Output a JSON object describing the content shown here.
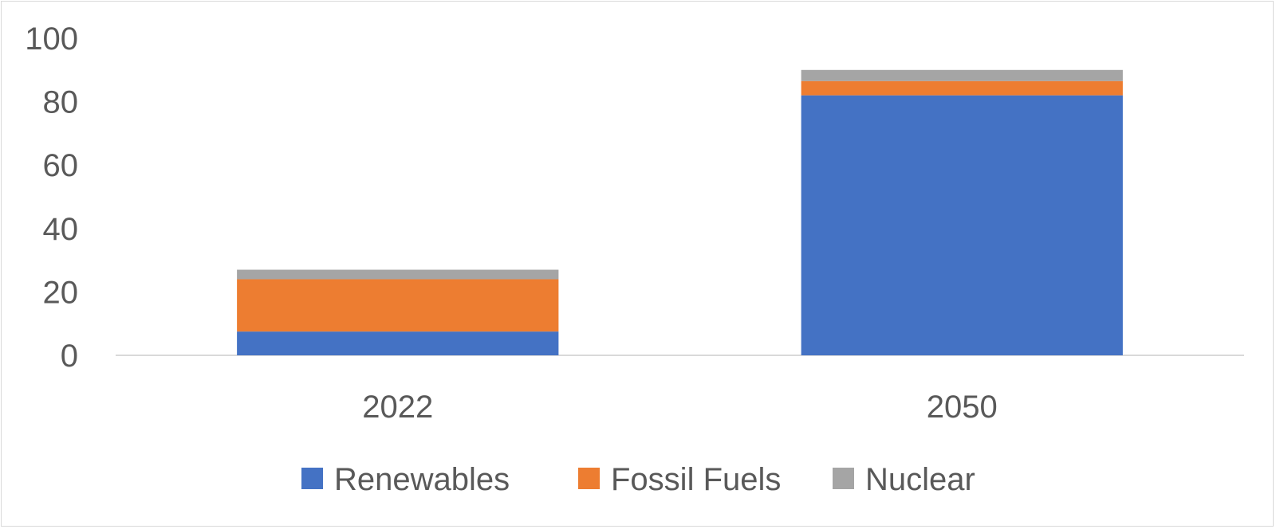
{
  "chart_data": {
    "type": "bar",
    "stacked": true,
    "categories": [
      "2022",
      "2050"
    ],
    "series": [
      {
        "name": "Renewables",
        "values": [
          7.5,
          82
        ],
        "color": "#4472c4"
      },
      {
        "name": "Fossil Fuels",
        "values": [
          16.5,
          4.5
        ],
        "color": "#ed7d31"
      },
      {
        "name": "Nuclear",
        "values": [
          3,
          3.5
        ],
        "color": "#a5a5a5"
      }
    ],
    "ylim": [
      0,
      100
    ],
    "yticks": [
      "0",
      "20",
      "40",
      "60",
      "80",
      "100"
    ],
    "title": "",
    "xlabel": "",
    "ylabel": "",
    "grid": false,
    "legend_position": "bottom"
  }
}
